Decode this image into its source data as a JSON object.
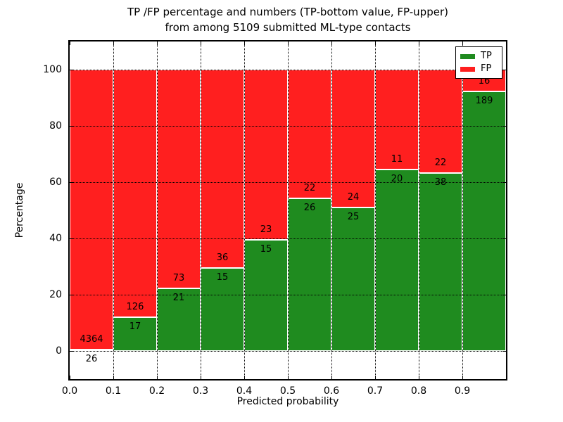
{
  "title": {
    "line1": "TP /FP percentage and numbers (TP-bottom value, FP-upper)",
    "line2": "from among 5109 submitted ML-type contacts"
  },
  "chart_data": {
    "type": "bar",
    "subtype": "stacked-normalized-100pct",
    "title": "TP /FP percentage and numbers (TP-bottom value, FP-upper) from among 5109 submitted ML-type contacts",
    "xlabel": "Predicted probability",
    "ylabel": "Percentage",
    "total_contacts": 5109,
    "bin_start": [
      0.0,
      0.1,
      0.2,
      0.3,
      0.4,
      0.5,
      0.6,
      0.7,
      0.8,
      0.9
    ],
    "bin_width": 0.1,
    "series": [
      {
        "name": "TP",
        "color": "#1f8b1f",
        "counts": [
          26,
          17,
          21,
          15,
          15,
          26,
          25,
          20,
          38,
          189
        ]
      },
      {
        "name": "FP",
        "color": "#ff1f1f",
        "counts": [
          4364,
          126,
          73,
          36,
          23,
          22,
          24,
          11,
          22,
          16
        ]
      }
    ],
    "x_tick_labels": [
      "0.0",
      "0.1",
      "0.2",
      "0.3",
      "0.4",
      "0.5",
      "0.6",
      "0.7",
      "0.8",
      "0.9"
    ],
    "y_tick_values": [
      0,
      20,
      40,
      60,
      80,
      100
    ],
    "xlim": [
      0.0,
      1.0
    ],
    "ylim": [
      -10,
      110
    ],
    "grid": true,
    "legend": {
      "position": "upper-right",
      "entries": [
        {
          "label": "TP",
          "color": "#1f8b1f"
        },
        {
          "label": "FP",
          "color": "#ff1f1f"
        }
      ]
    }
  }
}
